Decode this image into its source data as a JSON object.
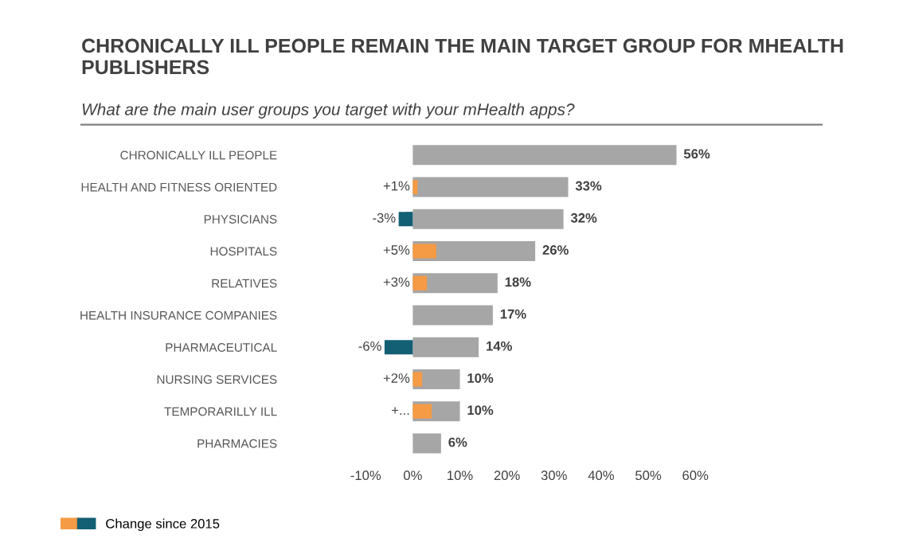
{
  "chart_data": {
    "type": "bar",
    "orientation": "horizontal",
    "title": "CHRONICALLY ILL PEOPLE REMAIN THE MAIN TARGET GROUP FOR MHEALTH PUBLISHERS",
    "subtitle": "What are the main user groups you target with your mHealth apps?",
    "categories": [
      "CHRONICALLY ILL PEOPLE",
      "HEALTH AND FITNESS ORIENTED",
      "PHYSICIANS",
      "HOSPITALS",
      "RELATIVES",
      "HEALTH INSURANCE COMPANIES",
      "PHARMACEUTICAL",
      "NURSING SERVICES",
      "TEMPORARILLY ILL",
      "PHARMACIES"
    ],
    "series": [
      {
        "color": "#a6a6a6",
        "values": [
          56,
          33,
          32,
          26,
          18,
          17,
          14,
          10,
          10,
          6
        ],
        "value_labels": [
          "56%",
          "33%",
          "32%",
          "26%",
          "18%",
          "17%",
          "14%",
          "10%",
          "10%",
          "6%"
        ]
      },
      {
        "name": "Change since 2015",
        "colors": [
          null,
          "#f59a45",
          "#135f73",
          "#f59a45",
          "#f59a45",
          null,
          "#135f73",
          "#f59a45",
          "#f59a45",
          null
        ],
        "values": [
          null,
          1,
          -3,
          5,
          3,
          null,
          -6,
          2,
          4,
          null
        ],
        "value_labels": [
          null,
          "+1%",
          "-3%",
          "+5%",
          "+3%",
          null,
          "-6%",
          "+2%",
          "+...",
          null
        ]
      }
    ],
    "xlim": [
      -10,
      60
    ],
    "xticks": [
      {
        "value": -10,
        "label": "-10%"
      },
      {
        "value": 0,
        "label": "0%"
      },
      {
        "value": 10,
        "label": "10%"
      },
      {
        "value": 20,
        "label": "20%"
      },
      {
        "value": 30,
        "label": "30%"
      },
      {
        "value": 40,
        "label": "40%"
      },
      {
        "value": 50,
        "label": "50%"
      },
      {
        "value": 60,
        "label": "60%"
      }
    ],
    "grid": false,
    "legend": "bottom left"
  }
}
